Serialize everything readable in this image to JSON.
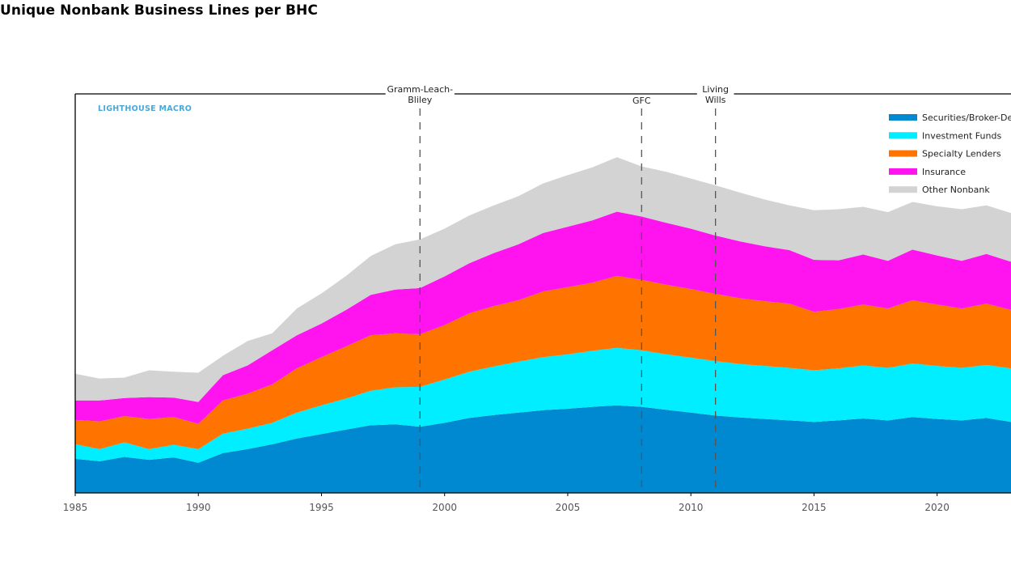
{
  "title": "Unique Nonbank Business Lines per BHC",
  "brand": "LIGHTHOUSE MACRO",
  "colors": {
    "securities": "#0089d1",
    "funds": "#00eeff",
    "lenders": "#ff7400",
    "insurance": "#ff14f0",
    "other": "#d3d3d3"
  },
  "chart_data": {
    "type": "area",
    "stacked": true,
    "title": "Unique Nonbank Business Lines per BHC",
    "xlabel": "",
    "ylabel": "",
    "xlim": [
      1985,
      2023
    ],
    "ylim": [
      0,
      8.2
    ],
    "x": [
      1985,
      1986,
      1987,
      1988,
      1989,
      1990,
      1991,
      1992,
      1993,
      1994,
      1995,
      1996,
      1997,
      1998,
      1999,
      2000,
      2001,
      2002,
      2003,
      2004,
      2005,
      2006,
      2007,
      2008,
      2009,
      2010,
      2011,
      2012,
      2013,
      2014,
      2015,
      2016,
      2017,
      2018,
      2019,
      2020,
      2021,
      2022,
      2023
    ],
    "xticks": [
      "1985",
      "1990",
      "1995",
      "2000",
      "2005",
      "2010",
      "2015",
      "2020"
    ],
    "series": [
      {
        "name": "Securities/Broker-Dealers",
        "color_key": "securities",
        "values": [
          0.7,
          0.65,
          0.74,
          0.68,
          0.73,
          0.62,
          0.82,
          0.9,
          1.0,
          1.12,
          1.21,
          1.3,
          1.39,
          1.41,
          1.36,
          1.44,
          1.54,
          1.6,
          1.65,
          1.7,
          1.73,
          1.77,
          1.8,
          1.77,
          1.71,
          1.65,
          1.59,
          1.55,
          1.52,
          1.49,
          1.46,
          1.49,
          1.53,
          1.49,
          1.56,
          1.52,
          1.49,
          1.54,
          1.46
        ]
      },
      {
        "name": "Investment Funds",
        "color_key": "funds",
        "values": [
          0.3,
          0.25,
          0.3,
          0.22,
          0.26,
          0.28,
          0.4,
          0.42,
          0.44,
          0.53,
          0.59,
          0.64,
          0.71,
          0.76,
          0.82,
          0.89,
          0.95,
          1.0,
          1.05,
          1.09,
          1.12,
          1.15,
          1.18,
          1.16,
          1.14,
          1.13,
          1.12,
          1.1,
          1.09,
          1.08,
          1.06,
          1.07,
          1.09,
          1.08,
          1.1,
          1.09,
          1.08,
          1.09,
          1.1
        ]
      },
      {
        "name": "Specialty Lenders",
        "color_key": "lenders",
        "values": [
          0.5,
          0.57,
          0.54,
          0.62,
          0.57,
          0.52,
          0.68,
          0.72,
          0.79,
          0.91,
          0.99,
          1.07,
          1.14,
          1.11,
          1.08,
          1.12,
          1.2,
          1.24,
          1.26,
          1.35,
          1.38,
          1.4,
          1.48,
          1.45,
          1.43,
          1.41,
          1.38,
          1.35,
          1.33,
          1.32,
          1.2,
          1.22,
          1.25,
          1.22,
          1.3,
          1.26,
          1.22,
          1.26,
          1.2
        ]
      },
      {
        "name": "Insurance",
        "color_key": "insurance",
        "values": [
          0.4,
          0.43,
          0.37,
          0.45,
          0.4,
          0.45,
          0.52,
          0.58,
          0.7,
          0.68,
          0.69,
          0.75,
          0.83,
          0.9,
          0.95,
          1.0,
          1.03,
          1.09,
          1.15,
          1.2,
          1.24,
          1.28,
          1.32,
          1.3,
          1.27,
          1.24,
          1.2,
          1.17,
          1.13,
          1.1,
          1.07,
          1.0,
          1.03,
          0.98,
          1.04,
          1.01,
          0.98,
          1.02,
          0.99
        ]
      },
      {
        "name": "Other Nonbank",
        "color_key": "other",
        "values": [
          0.55,
          0.45,
          0.42,
          0.55,
          0.53,
          0.6,
          0.4,
          0.5,
          0.35,
          0.55,
          0.62,
          0.7,
          0.8,
          0.93,
          1.0,
          0.98,
          0.98,
          0.98,
          0.99,
          1.02,
          1.06,
          1.09,
          1.12,
          1.03,
          1.05,
          1.03,
          1.03,
          1.0,
          0.96,
          0.92,
          1.02,
          1.05,
          0.98,
          1.0,
          0.98,
          1.01,
          1.06,
          1.0,
          1.0
        ]
      }
    ],
    "events": [
      {
        "x": 1999,
        "label": [
          "Gramm-Leach-",
          "Bliley"
        ]
      },
      {
        "x": 2008,
        "label": [
          "GFC"
        ]
      },
      {
        "x": 2011,
        "label": [
          "Living",
          "Wills"
        ]
      }
    ],
    "legend_position": "top-right"
  }
}
